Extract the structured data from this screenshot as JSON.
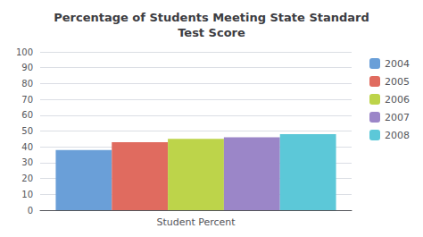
{
  "chart_data": {
    "type": "bar",
    "title": "Percentage of Students Meeting State Standard\nTest Score",
    "categories": [
      "Student Percent"
    ],
    "series": [
      {
        "name": "2004",
        "color": "#6a9fd8",
        "values": [
          38
        ]
      },
      {
        "name": "2005",
        "color": "#e06b5f",
        "values": [
          43
        ]
      },
      {
        "name": "2006",
        "color": "#bdd44a",
        "values": [
          45
        ]
      },
      {
        "name": "2007",
        "color": "#9b86c8",
        "values": [
          46
        ]
      },
      {
        "name": "2008",
        "color": "#5cc8d8",
        "values": [
          48
        ]
      }
    ],
    "ylim": [
      0,
      100
    ],
    "yticks": [
      0,
      10,
      20,
      30,
      40,
      50,
      60,
      70,
      80,
      90,
      100
    ],
    "grid": true,
    "legend": "right"
  }
}
